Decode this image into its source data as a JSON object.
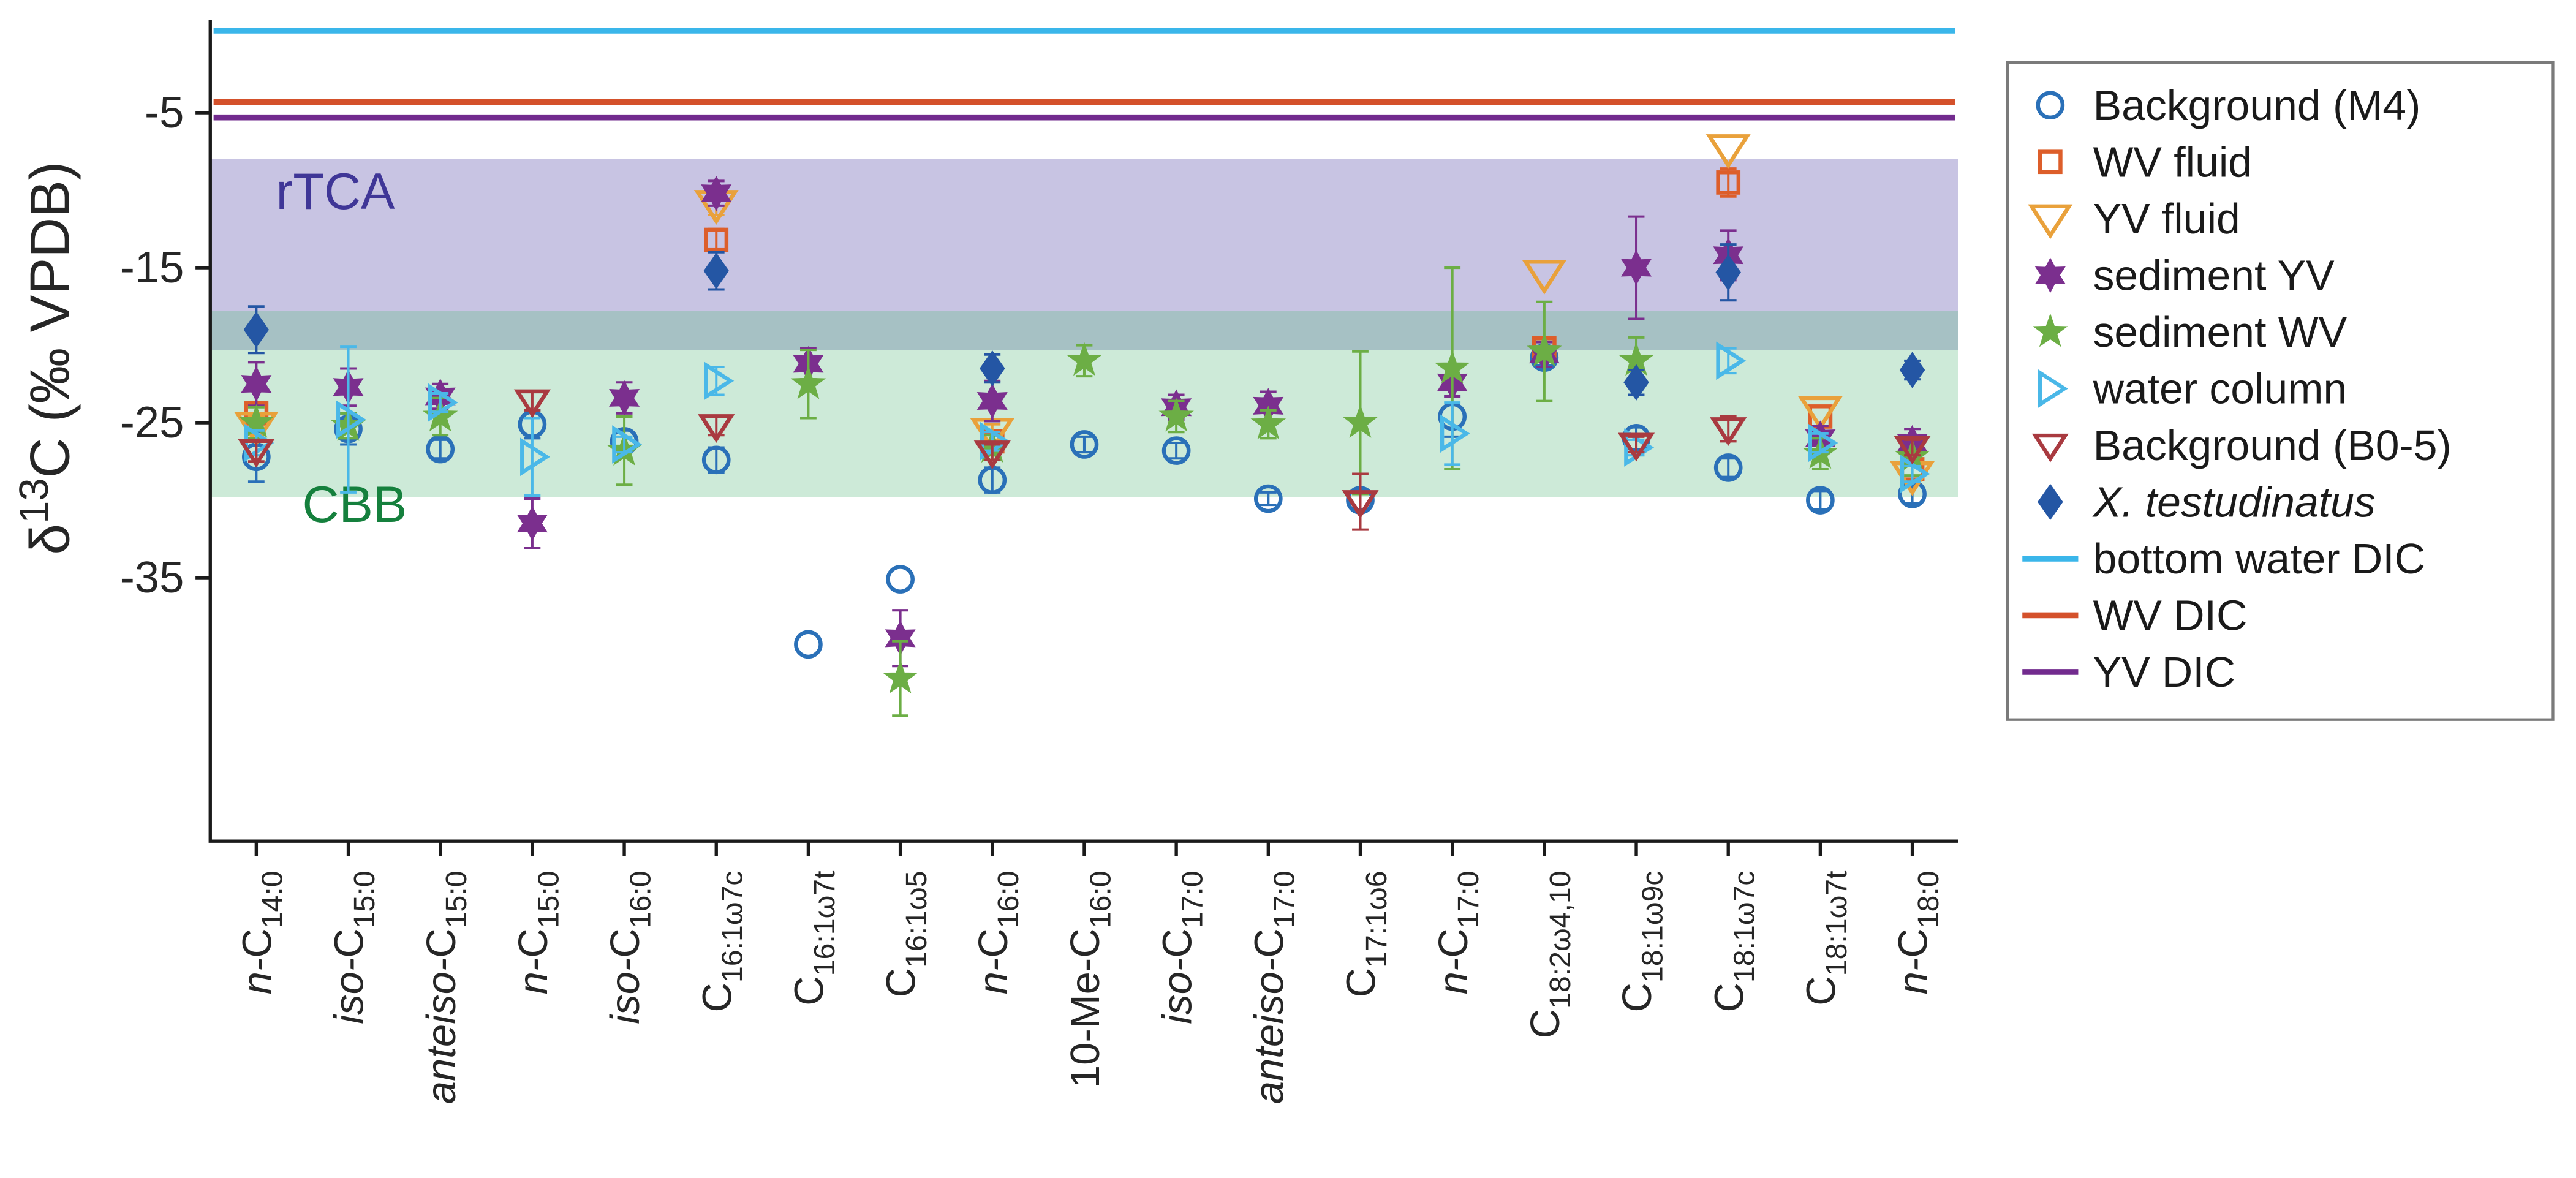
{
  "chart_data": {
    "type": "scatter",
    "title": "",
    "ylabel": "δ13C (‰ VPDB)",
    "ylabel_parts": [
      {
        "t": "δ"
      },
      {
        "t": "13",
        "u": true
      },
      {
        "t": "C (‰ VPDB)"
      }
    ],
    "ylim": [
      -52,
      1
    ],
    "yticks": [
      -5,
      -15,
      -25,
      -35
    ],
    "grid": false,
    "legend_position": "outside-right",
    "tick_labels": [
      "n-C14:0",
      "iso-C15:0",
      "anteiso-C15:0",
      "n-C15:0",
      "iso-C16:0",
      "C16:1ω7c",
      "C16:1ω7t",
      "C16:1ω5",
      "n-C16:0",
      "10-Me-C16:0",
      "iso-C17:0",
      "anteiso-C17:0",
      "C17:1ω6",
      "n-C17:0",
      "C18:2ω4,10",
      "C18:1ω9c",
      "C18:1ω7c",
      "C18:1ω7t",
      "n-C18:0"
    ],
    "categories": [
      [
        {
          "t": "n-",
          "i": true
        },
        {
          "t": "C"
        },
        {
          "t": "14:0",
          "s": true
        }
      ],
      [
        {
          "t": "iso-",
          "i": true
        },
        {
          "t": "C"
        },
        {
          "t": "15:0",
          "s": true
        }
      ],
      [
        {
          "t": "anteiso-",
          "i": true
        },
        {
          "t": "C"
        },
        {
          "t": "15:0",
          "s": true
        }
      ],
      [
        {
          "t": "n-",
          "i": true
        },
        {
          "t": "C"
        },
        {
          "t": "15:0",
          "s": true
        }
      ],
      [
        {
          "t": "iso-",
          "i": true
        },
        {
          "t": "C"
        },
        {
          "t": "16:0",
          "s": true
        }
      ],
      [
        {
          "t": "C"
        },
        {
          "t": "16:1ω7c",
          "s": true
        }
      ],
      [
        {
          "t": "C"
        },
        {
          "t": "16:1ω7t",
          "s": true
        }
      ],
      [
        {
          "t": "C"
        },
        {
          "t": "16:1ω5",
          "s": true
        }
      ],
      [
        {
          "t": "n-",
          "i": true
        },
        {
          "t": "C"
        },
        {
          "t": "16:0",
          "s": true
        }
      ],
      [
        {
          "t": "10-Me-C"
        },
        {
          "t": "16:0",
          "s": true
        }
      ],
      [
        {
          "t": "iso-",
          "i": true
        },
        {
          "t": "C"
        },
        {
          "t": "17:0",
          "s": true
        }
      ],
      [
        {
          "t": "anteiso-",
          "i": true
        },
        {
          "t": "C"
        },
        {
          "t": "17:0",
          "s": true
        }
      ],
      [
        {
          "t": "C"
        },
        {
          "t": "17:1ω6",
          "s": true
        }
      ],
      [
        {
          "t": "n-",
          "i": true
        },
        {
          "t": "C"
        },
        {
          "t": "17:0",
          "s": true
        }
      ],
      [
        {
          "t": "C"
        },
        {
          "t": "18:2ω4,10",
          "s": true
        }
      ],
      [
        {
          "t": "C"
        },
        {
          "t": "18:1ω9c",
          "s": true
        }
      ],
      [
        {
          "t": "C"
        },
        {
          "t": "18:1ω7c",
          "s": true
        }
      ],
      [
        {
          "t": "C"
        },
        {
          "t": "18:1ω7t",
          "s": true
        }
      ],
      [
        {
          "t": "n-",
          "i": true
        },
        {
          "t": "C"
        },
        {
          "t": "18:0",
          "s": true
        }
      ]
    ],
    "bands": [
      {
        "label": "rTCA",
        "y_from": -20.3,
        "y_to": -8.0,
        "fill": "#7c72bd",
        "opacity": 0.42,
        "label_color": "#3f3697",
        "label_dx": 40,
        "label_y": -11.2
      },
      {
        "label": "CBB",
        "y_from": -29.8,
        "y_to": -17.8,
        "fill": "#59b97e",
        "opacity": 0.3,
        "label_color": "#15803d",
        "label_dx": 56,
        "label_y": -31.4
      }
    ],
    "hlines": [
      {
        "label": "bottom water DIC",
        "y": 0.3,
        "color": "#3ab6ea"
      },
      {
        "label": "WV DIC",
        "y": -4.3,
        "color": "#d4512b"
      },
      {
        "label": "YV DIC",
        "y": -5.3,
        "color": "#722b8e"
      }
    ],
    "series": [
      {
        "name": "Background (M4)",
        "marker": "circle",
        "color": "#2a70b8",
        "filled": false,
        "size": 10,
        "points": [
          {
            "c": 0,
            "y": -27.2,
            "e": 1.6
          },
          {
            "c": 1,
            "y": -25.4,
            "e": 1.0
          },
          {
            "c": 2,
            "y": -26.7,
            "e": 0.6
          },
          {
            "c": 3,
            "y": -25.1,
            "e": 0.9
          },
          {
            "c": 4,
            "y": -26.2,
            "e": 0.7
          },
          {
            "c": 5,
            "y": -27.4,
            "e": 0.8
          },
          {
            "c": 6,
            "y": -39.3
          },
          {
            "c": 7,
            "y": -35.1
          },
          {
            "c": 8,
            "y": -28.7,
            "e": 0.8
          },
          {
            "c": 9,
            "y": -26.4,
            "e": 0.5
          },
          {
            "c": 10,
            "y": -26.8,
            "e": 0.5
          },
          {
            "c": 11,
            "y": -29.9,
            "e": 0.4
          },
          {
            "c": 12,
            "y": -30.0,
            "e": 0.6
          },
          {
            "c": 13,
            "y": -24.6,
            "e": 1.3
          },
          {
            "c": 14,
            "y": -20.8,
            "e": 0.5
          },
          {
            "c": 15,
            "y": -26.0,
            "e": 0.7
          },
          {
            "c": 16,
            "y": -27.9,
            "e": 0.6
          },
          {
            "c": 17,
            "y": -30.0,
            "e": 0.6
          },
          {
            "c": 18,
            "y": -29.6,
            "e": 0.6
          }
        ]
      },
      {
        "name": "WV fluid",
        "marker": "square",
        "color": "#dd5e2a",
        "filled": false,
        "size": 10,
        "points": [
          {
            "c": 0,
            "y": -24.4,
            "e": 0.7
          },
          {
            "c": 5,
            "y": -13.2,
            "e": 0.7
          },
          {
            "c": 8,
            "y": -26.2,
            "e": 0.5
          },
          {
            "c": 14,
            "y": -20.2,
            "e": 0.6
          },
          {
            "c": 16,
            "y": -9.5,
            "e": 0.9
          },
          {
            "c": 17,
            "y": -24.6
          },
          {
            "c": 18,
            "y": -28.0
          }
        ]
      },
      {
        "name": "YV fluid",
        "marker": "triangle-down",
        "color": "#e9a13b",
        "filled": false,
        "size": 12,
        "points": [
          {
            "c": 0,
            "y": -25.2,
            "e": 0.6
          },
          {
            "c": 5,
            "y": -10.9,
            "e": 0.7
          },
          {
            "c": 8,
            "y": -25.6,
            "e": 0.5
          },
          {
            "c": 14,
            "y": -15.4
          },
          {
            "c": 16,
            "y": -7.3
          },
          {
            "c": 17,
            "y": -24.2
          },
          {
            "c": 18,
            "y": -28.4
          }
        ]
      },
      {
        "name": "sediment YV",
        "marker": "hexagram",
        "color": "#7b2f8e",
        "filled": true,
        "size": 9.5,
        "points": [
          {
            "c": 0,
            "y": -22.5,
            "e": 1.4
          },
          {
            "c": 1,
            "y": -22.7,
            "e": 1.2
          },
          {
            "c": 2,
            "y": -23.3,
            "e": 0.8
          },
          {
            "c": 3,
            "y": -31.5,
            "e": 1.6
          },
          {
            "c": 4,
            "y": -23.4,
            "e": 1.0
          },
          {
            "c": 5,
            "y": -10.2,
            "e": 0.8
          },
          {
            "c": 6,
            "y": -21.2,
            "e": 1.0
          },
          {
            "c": 7,
            "y": -38.9,
            "e": 1.8
          },
          {
            "c": 8,
            "y": -23.6,
            "e": 1.3
          },
          {
            "c": 10,
            "y": -24.0,
            "e": 0.8
          },
          {
            "c": 11,
            "y": -23.9,
            "e": 0.9
          },
          {
            "c": 13,
            "y": -22.4,
            "e": 0.9
          },
          {
            "c": 14,
            "y": -20.6,
            "e": 0.8
          },
          {
            "c": 15,
            "y": -15.0,
            "e": 3.3
          },
          {
            "c": 16,
            "y": -14.2,
            "e": 1.6
          },
          {
            "c": 17,
            "y": -26.0,
            "e": 0.8
          },
          {
            "c": 18,
            "y": -26.3,
            "e": 0.9
          }
        ]
      },
      {
        "name": "sediment WV",
        "marker": "pentagram",
        "color": "#6cae45",
        "filled": true,
        "size": 9.5,
        "points": [
          {
            "c": 0,
            "y": -25.0,
            "e": 1.0
          },
          {
            "c": 1,
            "y": -25.2,
            "e": 0.8
          },
          {
            "c": 2,
            "y": -24.6,
            "e": 1.2
          },
          {
            "c": 4,
            "y": -26.8,
            "e": 2.2
          },
          {
            "c": 6,
            "y": -22.5,
            "e": 2.2
          },
          {
            "c": 7,
            "y": -41.5,
            "e": 2.4
          },
          {
            "c": 8,
            "y": -26.6,
            "e": 0.8
          },
          {
            "c": 9,
            "y": -21.0,
            "e": 1.0
          },
          {
            "c": 10,
            "y": -24.6,
            "e": 1.0
          },
          {
            "c": 11,
            "y": -25.1,
            "e": 0.9
          },
          {
            "c": 12,
            "y": -25.0,
            "e": 4.6
          },
          {
            "c": 13,
            "y": -21.5,
            "e": 6.5
          },
          {
            "c": 14,
            "y": -20.4,
            "e": 3.2
          },
          {
            "c": 15,
            "y": -21.0,
            "e": 1.5
          },
          {
            "c": 17,
            "y": -27.0,
            "e": 1.0
          },
          {
            "c": 18,
            "y": -27.2,
            "e": 1.2
          }
        ]
      },
      {
        "name": "water column",
        "marker": "triangle-right",
        "color": "#4ab8e8",
        "filled": false,
        "size": 10,
        "points": [
          {
            "c": 0,
            "y": -26.3,
            "e": 0.8
          },
          {
            "c": 1,
            "y": -24.8,
            "e": 4.7
          },
          {
            "c": 2,
            "y": -23.7,
            "e": 0.6
          },
          {
            "c": 3,
            "y": -27.2,
            "e": 2.5
          },
          {
            "c": 4,
            "y": -26.4,
            "e": 0.5
          },
          {
            "c": 5,
            "y": -22.3,
            "e": 0.9
          },
          {
            "c": 8,
            "y": -26.2,
            "e": 0.6
          },
          {
            "c": 13,
            "y": -25.7,
            "e": 2.0
          },
          {
            "c": 15,
            "y": -26.6,
            "e": 0.5
          },
          {
            "c": 16,
            "y": -21.0,
            "e": 0.8
          },
          {
            "c": 17,
            "y": -26.3,
            "e": 0.6
          },
          {
            "c": 18,
            "y": -28.3,
            "e": 0.5
          }
        ]
      },
      {
        "name": "Background (B0-5)",
        "marker": "triangle-down",
        "color": "#a93a40",
        "filled": false,
        "size": 9.5,
        "points": [
          {
            "c": 0,
            "y": -26.8,
            "e": 0.7
          },
          {
            "c": 3,
            "y": -23.6,
            "e": 0.6
          },
          {
            "c": 5,
            "y": -25.2,
            "e": 0.6
          },
          {
            "c": 8,
            "y": -26.9,
            "e": 0.5
          },
          {
            "c": 12,
            "y": -30.1,
            "e": 1.8
          },
          {
            "c": 15,
            "y": -26.4,
            "e": 0.5
          },
          {
            "c": 16,
            "y": -25.4,
            "e": 0.8
          },
          {
            "c": 18,
            "y": -26.6,
            "e": 0.5
          }
        ]
      },
      {
        "name": "X. testudinatus",
        "marker": "diamond",
        "color": "#2456a4",
        "filled": true,
        "size": 10,
        "points": [
          {
            "c": 0,
            "y": -19.0,
            "e": 1.5
          },
          {
            "c": 5,
            "y": -15.2,
            "e": 1.2
          },
          {
            "c": 8,
            "y": -21.5,
            "e": 0.9
          },
          {
            "c": 15,
            "y": -22.4,
            "e": 0.8
          },
          {
            "c": 16,
            "y": -15.3,
            "e": 1.8
          },
          {
            "c": 18,
            "y": -21.6,
            "e": 0.6
          }
        ]
      }
    ]
  },
  "legend": {
    "items": [
      {
        "label": "Background (M4)",
        "marker": "circle",
        "color": "#2a70b8",
        "filled": false,
        "size": 10
      },
      {
        "label": "WV fluid",
        "marker": "square",
        "color": "#dd5e2a",
        "filled": false,
        "size": 10
      },
      {
        "label": "YV fluid",
        "marker": "triangle-down",
        "color": "#e9a13b",
        "filled": false,
        "size": 12
      },
      {
        "label": "sediment YV",
        "marker": "hexagram",
        "color": "#7b2f8e",
        "filled": true,
        "size": 9.5
      },
      {
        "label": "sediment WV",
        "marker": "pentagram",
        "color": "#6cae45",
        "filled": true,
        "size": 9.5
      },
      {
        "label": "water column",
        "marker": "triangle-right",
        "color": "#4ab8e8",
        "filled": false,
        "size": 10
      },
      {
        "label": "Background (B0-5)",
        "marker": "triangle-down",
        "color": "#a93a40",
        "filled": false,
        "size": 9.5
      },
      {
        "label": "X. testudinatus",
        "italic": true,
        "marker": "diamond",
        "color": "#2456a4",
        "filled": true,
        "size": 10
      },
      {
        "label": "bottom water DIC",
        "marker": "line",
        "color": "#3ab6ea"
      },
      {
        "label": "WV DIC",
        "marker": "line",
        "color": "#d4512b"
      },
      {
        "label": "YV DIC",
        "marker": "line",
        "color": "#722b8e"
      }
    ]
  },
  "colors": {
    "axis": "#1a1a1a",
    "text": "#262626",
    "legend_border": "#7a7a7a"
  }
}
